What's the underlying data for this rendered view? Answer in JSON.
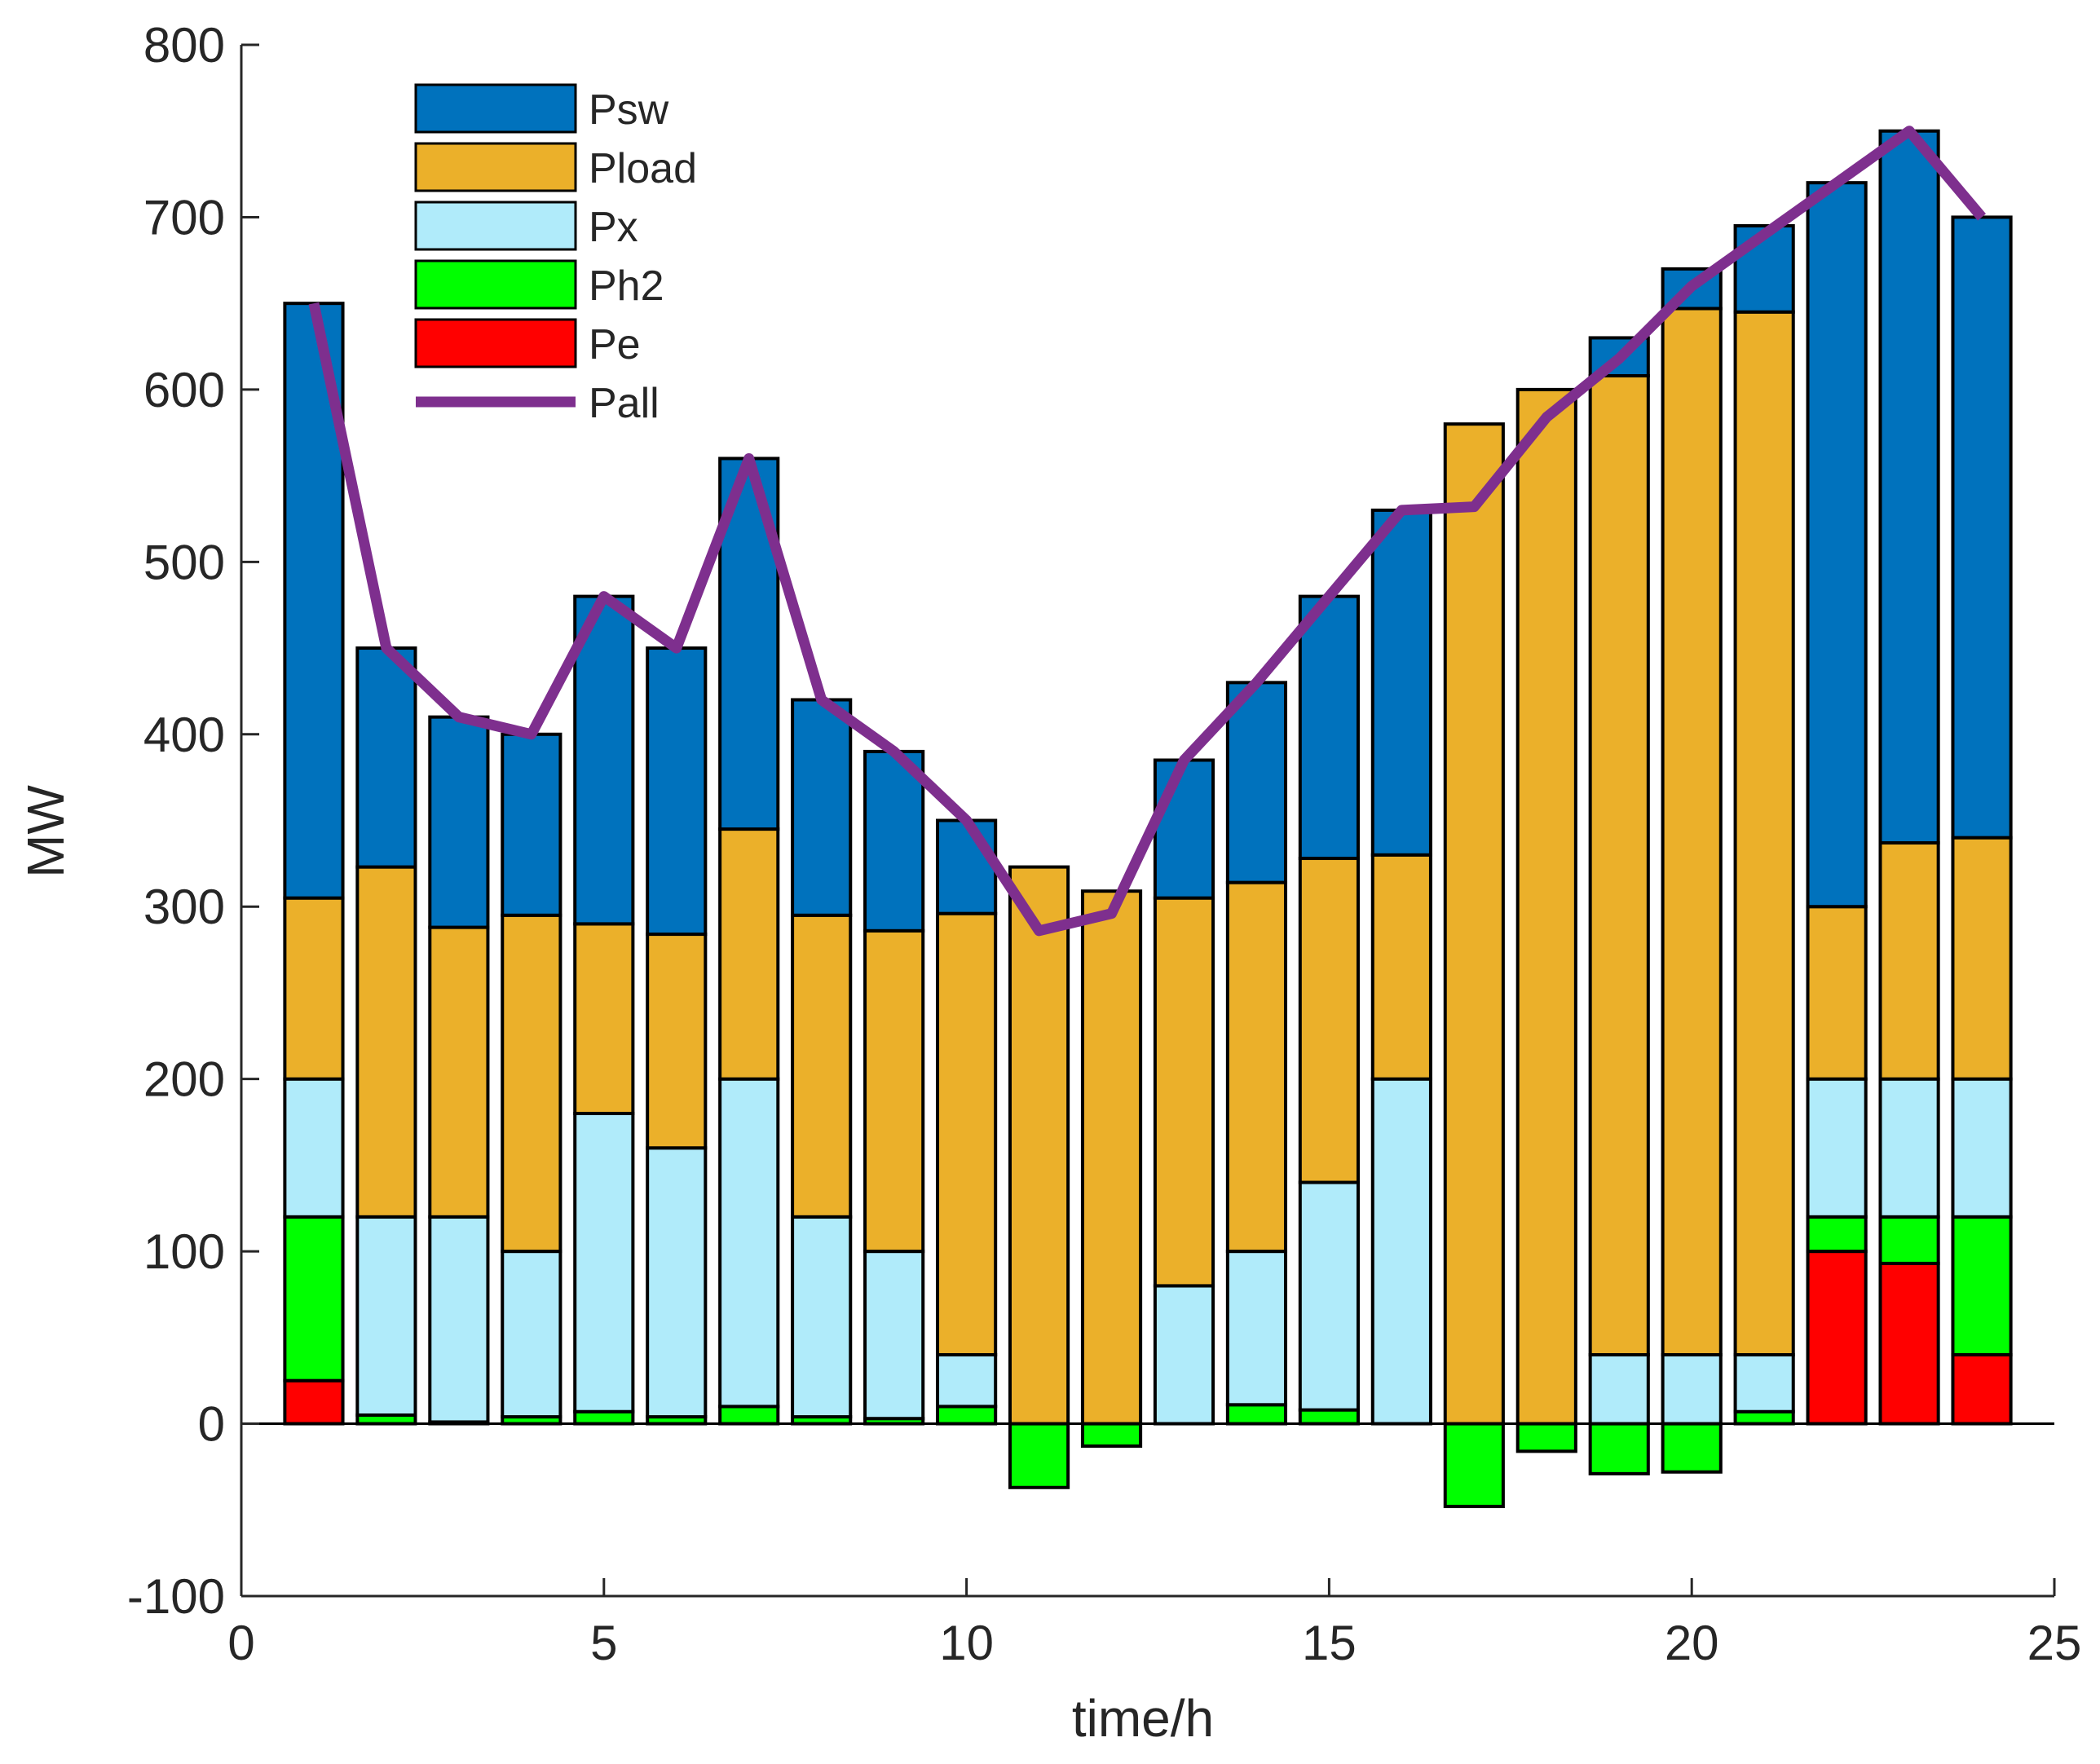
{
  "chart_data": {
    "type": "bar",
    "stacked": true,
    "xlabel": "time/h",
    "ylabel": "MW",
    "xlim": [
      0,
      25
    ],
    "ylim": [
      -100,
      800
    ],
    "xticks": [
      0,
      5,
      10,
      15,
      20,
      25
    ],
    "yticks": [
      -100,
      0,
      100,
      200,
      300,
      400,
      500,
      600,
      700,
      800
    ],
    "x": [
      1,
      2,
      3,
      4,
      5,
      6,
      7,
      8,
      9,
      10,
      11,
      12,
      13,
      14,
      15,
      16,
      17,
      18,
      19,
      20,
      21,
      22,
      23,
      24
    ],
    "legend_position": "top-left",
    "series": [
      {
        "name": "Pe",
        "kind": "bar",
        "color": "#ff0000",
        "values": [
          25,
          0,
          0,
          0,
          0,
          0,
          0,
          0,
          0,
          0,
          0,
          0,
          0,
          0,
          0,
          0,
          0,
          0,
          0,
          0,
          0,
          100,
          93,
          40
        ]
      },
      {
        "name": "Ph2",
        "kind": "bar",
        "color": "#00ff00",
        "values": [
          95,
          5,
          1,
          4,
          7,
          4,
          10,
          4,
          3,
          10,
          -37,
          -13,
          0,
          11,
          8,
          0,
          -48,
          -16,
          -29,
          -28,
          7,
          20,
          27,
          80
        ]
      },
      {
        "name": "Px",
        "kind": "bar",
        "color": "#b0ebfa",
        "values": [
          80,
          115,
          119,
          96,
          173,
          156,
          190,
          116,
          97,
          30,
          0,
          0,
          80,
          89,
          132,
          200,
          0,
          0,
          40,
          40,
          33,
          80,
          80,
          80
        ]
      },
      {
        "name": "Pload",
        "kind": "bar",
        "color": "#ebb02a",
        "values": [
          105,
          203,
          168,
          195,
          110,
          124,
          145,
          175,
          186,
          256,
          323,
          309,
          225,
          214,
          188,
          130,
          580,
          600,
          568,
          607,
          605,
          100,
          137,
          140
        ]
      },
      {
        "name": "Psw",
        "kind": "bar",
        "color": "#0072bd",
        "values": [
          345,
          127,
          122,
          105,
          190,
          166,
          215,
          125,
          104,
          54,
          0,
          0,
          80,
          116,
          152,
          200,
          0,
          0,
          22,
          23,
          50,
          420,
          413,
          360
        ]
      },
      {
        "name": "Pall",
        "kind": "line",
        "color": "#7e2f8e",
        "values": [
          650,
          450,
          410,
          400,
          480,
          450,
          560,
          420,
          390,
          350,
          286,
          296,
          385,
          430,
          480,
          530,
          532,
          584,
          618,
          660,
          690,
          720,
          750,
          700
        ]
      }
    ],
    "legend_order": [
      "Psw",
      "Pload",
      "Px",
      "Ph2",
      "Pe",
      "Pall"
    ]
  }
}
